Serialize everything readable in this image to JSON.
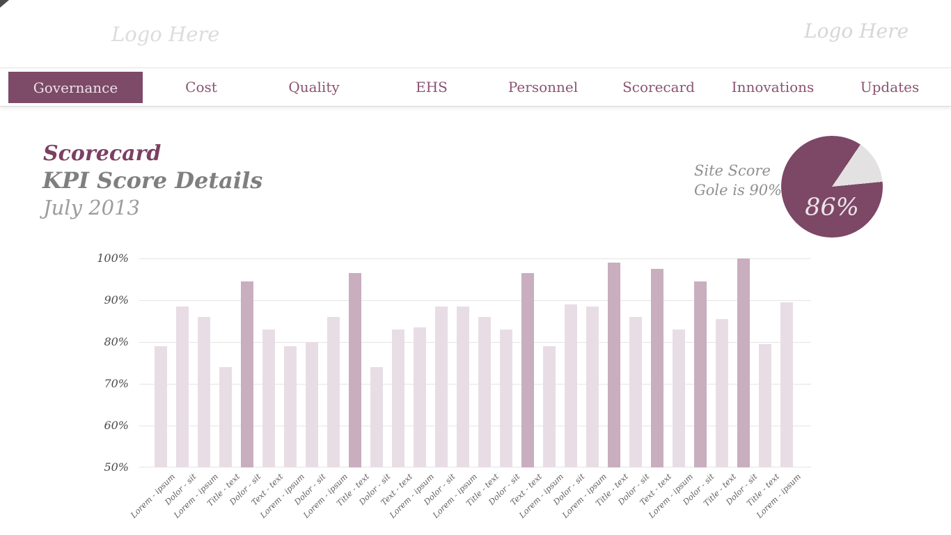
{
  "header": {
    "logo_left": "Logo Here",
    "logo_right": "Logo Here"
  },
  "nav": {
    "items": [
      {
        "label": "Governance",
        "active": true
      },
      {
        "label": "Cost",
        "active": false
      },
      {
        "label": "Quality",
        "active": false
      },
      {
        "label": "EHS",
        "active": false
      },
      {
        "label": "Personnel",
        "active": false
      },
      {
        "label": "Scorecard",
        "active": false
      },
      {
        "label": "Innovations",
        "active": false
      },
      {
        "label": "Updates",
        "active": false
      }
    ]
  },
  "page": {
    "title": "Scorecard",
    "subtitle": "KPI Score Details",
    "period": "July 2013"
  },
  "site_score": {
    "caption_line1": "Site Score",
    "caption_line2": "Gole is 90%",
    "value_label": "86%"
  },
  "colors": {
    "accent": "#7d4a68",
    "nav_link": "#8a5372",
    "bar_light": "#e8dde5",
    "bar_highlight": "#c8aebf",
    "pie_fill": "#7d4766",
    "pie_rest": "#e3e1e2",
    "gridline": "#e4e4e4"
  },
  "chart_data": [
    {
      "type": "bar",
      "title": "KPI Score Details",
      "subtitle": "July 2013",
      "categories": [
        "Lorem - ipsum",
        "Dolor - sit",
        "Lorem - ipsum",
        "Title - text",
        "Dolor - sit",
        "Text - text",
        "Lorem - ipsum",
        "Dolor - sit",
        "Lorem - ipsum",
        "Title - text",
        "Dolor - sit",
        "Text - text",
        "Lorem - ipsum",
        "Dolor - sit",
        "Lorem - ipsum",
        "Title - text",
        "Dolor - sit",
        "Text - text",
        "Lorem - ipsum",
        "Dolor - sit",
        "Lorem - ipsum",
        "Title - text",
        "Dolor - sit",
        "Text - text",
        "Lorem - ipsum",
        "Dolor - sit",
        "Title - text",
        "Dolor - sit",
        "Title - text",
        "Lorem - ipsum"
      ],
      "values": [
        79,
        88.5,
        86,
        74,
        94.5,
        83,
        79,
        80,
        86,
        96.5,
        74,
        83,
        83.5,
        88.5,
        88.5,
        86,
        83,
        96.5,
        79,
        89,
        88.5,
        99,
        86,
        97.5,
        83,
        94.5,
        85.5,
        100,
        79.5,
        89.5
      ],
      "highlight_indices": [
        4,
        9,
        17,
        21,
        23,
        25,
        27
      ],
      "y_ticks": [
        "100%",
        "90%",
        "80%",
        "70%",
        "60%",
        "50%"
      ],
      "ylim": [
        50,
        100
      ],
      "grid": true,
      "legend": false
    },
    {
      "type": "pie",
      "values": [
        86,
        14
      ],
      "value_label": "86%",
      "goal_text": "Gole is 90%"
    }
  ]
}
